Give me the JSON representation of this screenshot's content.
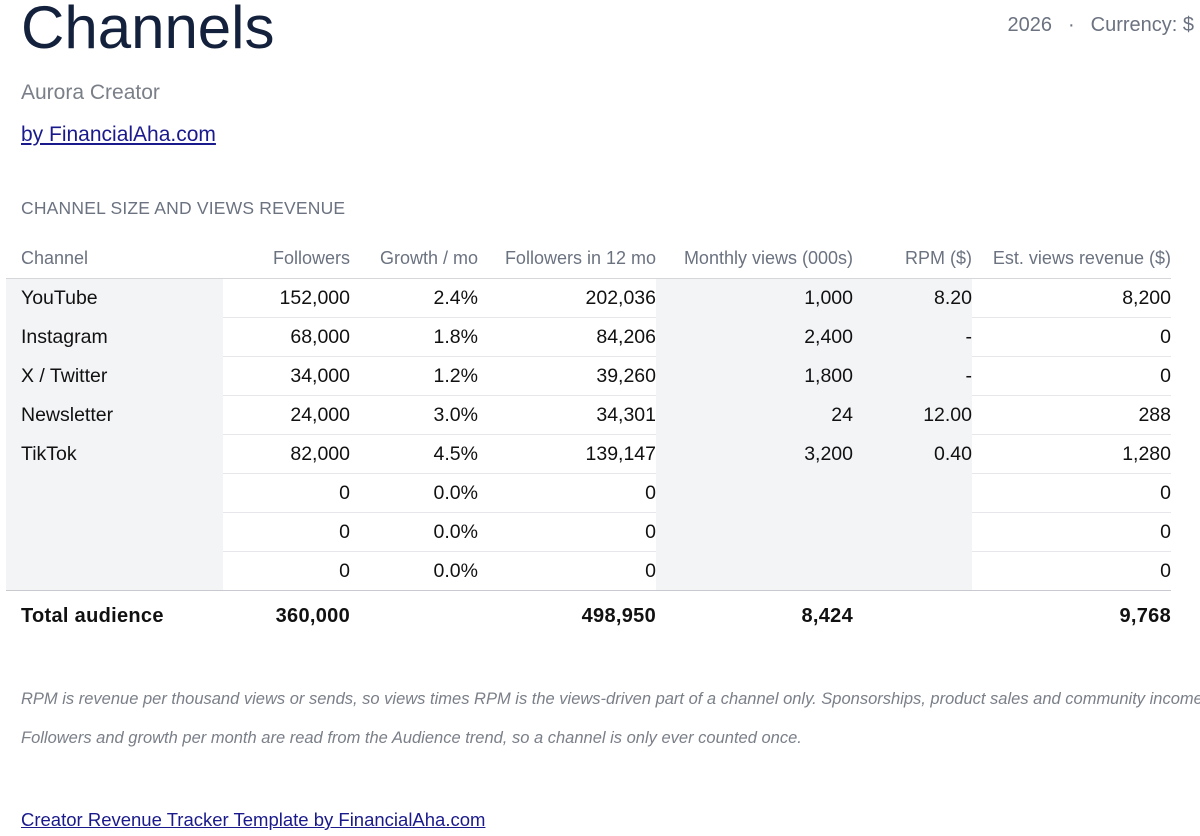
{
  "header": {
    "title": "Channels",
    "year": "2026",
    "separator": "·",
    "currency": "Currency: $",
    "subtitle": "Aurora Creator",
    "byline": "by FinancialAha.com"
  },
  "section": {
    "heading": "CHANNEL SIZE AND VIEWS REVENUE"
  },
  "table": {
    "columns": [
      "Channel",
      "Followers",
      "Growth / mo",
      "Followers in 12 mo",
      "Monthly views (000s)",
      "RPM ($)",
      "Est. views revenue ($)"
    ],
    "rows": [
      {
        "channel": "YouTube",
        "followers": "152,000",
        "growth": "2.4%",
        "followers_12mo": "202,036",
        "monthly_views": "1,000",
        "rpm": "8.20",
        "revenue": "8,200"
      },
      {
        "channel": "Instagram",
        "followers": "68,000",
        "growth": "1.8%",
        "followers_12mo": "84,206",
        "monthly_views": "2,400",
        "rpm": "-",
        "revenue": "0"
      },
      {
        "channel": "X / Twitter",
        "followers": "34,000",
        "growth": "1.2%",
        "followers_12mo": "39,260",
        "monthly_views": "1,800",
        "rpm": "-",
        "revenue": "0"
      },
      {
        "channel": "Newsletter",
        "followers": "24,000",
        "growth": "3.0%",
        "followers_12mo": "34,301",
        "monthly_views": "24",
        "rpm": "12.00",
        "revenue": "288"
      },
      {
        "channel": "TikTok",
        "followers": "82,000",
        "growth": "4.5%",
        "followers_12mo": "139,147",
        "monthly_views": "3,200",
        "rpm": "0.40",
        "revenue": "1,280"
      },
      {
        "channel": "",
        "followers": "0",
        "growth": "0.0%",
        "followers_12mo": "0",
        "monthly_views": "",
        "rpm": "",
        "revenue": "0"
      },
      {
        "channel": "",
        "followers": "0",
        "growth": "0.0%",
        "followers_12mo": "0",
        "monthly_views": "",
        "rpm": "",
        "revenue": "0"
      },
      {
        "channel": "",
        "followers": "0",
        "growth": "0.0%",
        "followers_12mo": "0",
        "monthly_views": "",
        "rpm": "",
        "revenue": "0"
      }
    ],
    "total": {
      "label": "Total audience",
      "followers": "360,000",
      "growth": "",
      "followers_12mo": "498,950",
      "monthly_views": "8,424",
      "rpm": "",
      "revenue": "9,768"
    }
  },
  "notes": [
    "RPM is revenue per thousand views or sends, so views times RPM is the views-driven part of a channel only. Sponsorships, product sales and community income are",
    "Followers and growth per month are read from the Audience trend, so a channel is only ever counted once."
  ],
  "footer": {
    "link": "Creator Revenue Tracker Template by FinancialAha.com"
  },
  "colors": {
    "title": "#14213d",
    "muted": "#6b7280",
    "link": "#1a1a8c",
    "input_shade": "#f3f4f6"
  }
}
